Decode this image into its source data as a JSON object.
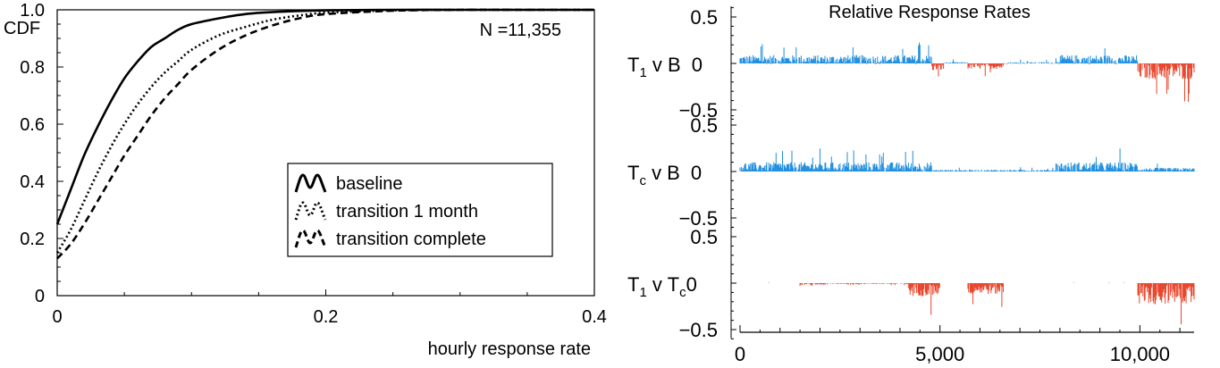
{
  "chart_data": [
    {
      "type": "line",
      "panel": "cdf",
      "ylabel": "CDF",
      "xlabel": "hourly response rate",
      "annotation": "N =11,355",
      "xlim": [
        0,
        0.4
      ],
      "ylim": [
        0,
        1.0
      ],
      "x_ticks": [
        0,
        0.2,
        0.4
      ],
      "x_tick_labels": [
        "0",
        "0.2",
        "0.4"
      ],
      "y_ticks": [
        0,
        0.2,
        0.4,
        0.6,
        0.8,
        1.0
      ],
      "y_tick_labels": [
        "0",
        "0.2",
        "0.4",
        "0.6",
        "0.8",
        "1.0"
      ],
      "legend_position": "lower-right",
      "series": [
        {
          "name": "baseline",
          "style": "solid",
          "x": [
            0,
            0.01,
            0.02,
            0.03,
            0.04,
            0.05,
            0.06,
            0.07,
            0.08,
            0.09,
            0.1,
            0.12,
            0.14,
            0.16,
            0.18,
            0.2,
            0.25,
            0.3,
            0.35,
            0.4
          ],
          "y": [
            0.25,
            0.37,
            0.49,
            0.59,
            0.68,
            0.76,
            0.82,
            0.87,
            0.9,
            0.93,
            0.95,
            0.97,
            0.985,
            0.992,
            0.996,
            0.998,
            1.0,
            1.0,
            1.0,
            1.0
          ]
        },
        {
          "name": "transition 1 month",
          "style": "dotted",
          "x": [
            0,
            0.01,
            0.02,
            0.03,
            0.04,
            0.05,
            0.06,
            0.07,
            0.08,
            0.09,
            0.1,
            0.12,
            0.14,
            0.16,
            0.18,
            0.2,
            0.25,
            0.3,
            0.35,
            0.4
          ],
          "y": [
            0.15,
            0.23,
            0.33,
            0.43,
            0.52,
            0.6,
            0.67,
            0.73,
            0.78,
            0.82,
            0.86,
            0.91,
            0.94,
            0.965,
            0.98,
            0.99,
            0.998,
            1.0,
            1.0,
            1.0
          ]
        },
        {
          "name": "transition complete",
          "style": "dashed",
          "x": [
            0,
            0.01,
            0.02,
            0.03,
            0.04,
            0.05,
            0.06,
            0.07,
            0.08,
            0.09,
            0.1,
            0.12,
            0.14,
            0.16,
            0.18,
            0.2,
            0.25,
            0.3,
            0.35,
            0.4
          ],
          "y": [
            0.13,
            0.18,
            0.25,
            0.33,
            0.41,
            0.49,
            0.56,
            0.63,
            0.69,
            0.74,
            0.79,
            0.86,
            0.91,
            0.945,
            0.97,
            0.985,
            0.997,
            1.0,
            1.0,
            1.0
          ]
        }
      ]
    },
    {
      "type": "bar",
      "panel": "relative-response-rates",
      "title": "Relative Response Rates",
      "x_range": [
        0,
        11355
      ],
      "x_ticks": [
        0,
        5000,
        10000
      ],
      "x_tick_labels": [
        "0",
        "5,000",
        "10,000"
      ],
      "y_range": [
        -0.6,
        0.6
      ],
      "y_tick_labels": [
        "0.5",
        "0",
        "−0.5"
      ],
      "positive_color": "#1f8fe0",
      "negative_color": "#e8452c",
      "rows": [
        {
          "label_main": "T",
          "label_sub": "1",
          "label_rest": " v B",
          "label_sub2": "",
          "segments": [
            {
              "x": [
                0,
                4800
              ],
              "mean": 0.04,
              "spread": 0.05
            },
            {
              "x": [
                4800,
                5100
              ],
              "mean": -0.04,
              "spread": 0.04
            },
            {
              "x": [
                5100,
                5700
              ],
              "mean": 0.005,
              "spread": 0.01
            },
            {
              "x": [
                5700,
                6600
              ],
              "mean": -0.03,
              "spread": 0.03
            },
            {
              "x": [
                6600,
                7900
              ],
              "mean": 0.005,
              "spread": 0.01
            },
            {
              "x": [
                7900,
                9950
              ],
              "mean": 0.04,
              "spread": 0.05
            },
            {
              "x": [
                9950,
                11355
              ],
              "mean": -0.08,
              "spread": 0.09
            }
          ]
        },
        {
          "label_main": "T",
          "label_sub": "c",
          "label_rest": " v B",
          "label_sub2": "",
          "segments": [
            {
              "x": [
                0,
                4800
              ],
              "mean": 0.05,
              "spread": 0.05
            },
            {
              "x": [
                4800,
                7900
              ],
              "mean": 0.01,
              "spread": 0.01
            },
            {
              "x": [
                7900,
                9950
              ],
              "mean": 0.05,
              "spread": 0.05
            },
            {
              "x": [
                9950,
                11355
              ],
              "mean": 0.02,
              "spread": 0.02
            }
          ]
        },
        {
          "label_main": "T",
          "label_sub": "1",
          "label_rest": " v T",
          "label_sub2": "c",
          "trailing": "0",
          "segments": [
            {
              "x": [
                0,
                1500
              ],
              "mean": 0.0,
              "spread": 0.002
            },
            {
              "x": [
                1500,
                2200
              ],
              "mean": -0.01,
              "spread": 0.01
            },
            {
              "x": [
                2200,
                4200
              ],
              "mean": -0.004,
              "spread": 0.006
            },
            {
              "x": [
                4200,
                5000
              ],
              "mean": -0.07,
              "spread": 0.07
            },
            {
              "x": [
                5000,
                5700
              ],
              "mean": 0.0,
              "spread": 0.002
            },
            {
              "x": [
                5700,
                6600
              ],
              "mean": -0.06,
              "spread": 0.06
            },
            {
              "x": [
                6600,
                9950
              ],
              "mean": 0.0,
              "spread": 0.002
            },
            {
              "x": [
                9950,
                11355
              ],
              "mean": -0.11,
              "spread": 0.12
            }
          ]
        }
      ]
    }
  ]
}
